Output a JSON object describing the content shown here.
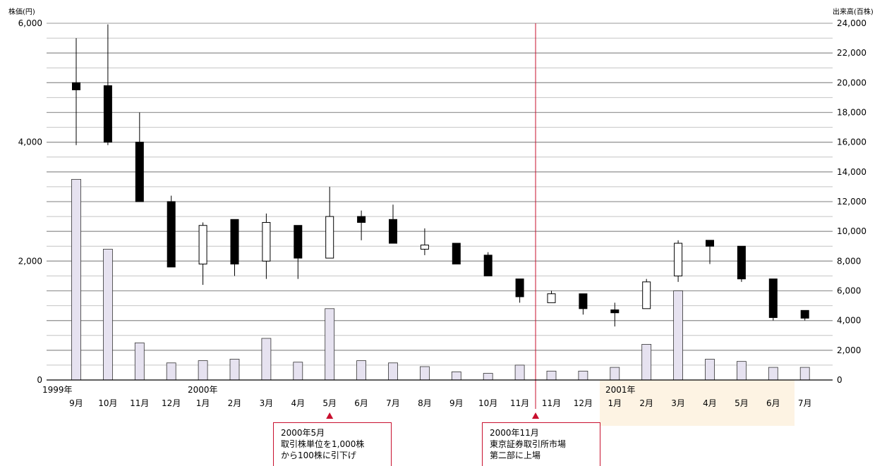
{
  "chart_data": {
    "type": "candlestick+bar",
    "ylabel_left": "株価(円)",
    "ylabel_right": "出来高(百株)",
    "left_ylim": [
      0,
      6000
    ],
    "left_ticks": [
      "0",
      "2,000",
      "4,000",
      "6,000"
    ],
    "left_tick_values": [
      0,
      2000,
      4000,
      6000
    ],
    "right_ylim": [
      0,
      24000
    ],
    "right_ticks": [
      "0",
      "2,000",
      "4,000",
      "6,000",
      "8,000",
      "10,000",
      "12,000",
      "14,000",
      "16,000",
      "18,000",
      "20,000",
      "22,000",
      "24,000"
    ],
    "right_tick_values": [
      0,
      2000,
      4000,
      6000,
      8000,
      10000,
      12000,
      14000,
      16000,
      18000,
      20000,
      22000,
      24000
    ],
    "year_labels": [
      {
        "index": 0,
        "text": "1999年"
      },
      {
        "index": 4,
        "text": "2000年"
      },
      {
        "index": 17,
        "text": "2001年"
      }
    ],
    "months": [
      "9月",
      "10月",
      "11月",
      "12月",
      "1月",
      "2月",
      "3月",
      "4月",
      "5月",
      "6月",
      "7月",
      "8月",
      "9月",
      "10月",
      "11月",
      "11月",
      "12月",
      "1月",
      "2月",
      "3月",
      "4月",
      "5月",
      "6月",
      "7月"
    ],
    "candles": [
      {
        "open": 5000,
        "high": 5750,
        "low": 3950,
        "close": 4880
      },
      {
        "open": 4950,
        "high": 5980,
        "low": 3950,
        "close": 4000
      },
      {
        "open": 4000,
        "high": 4500,
        "low": 3000,
        "close": 3000
      },
      {
        "open": 3000,
        "high": 3100,
        "low": 1900,
        "close": 1900
      },
      {
        "open": 1950,
        "high": 2650,
        "low": 1600,
        "close": 2600
      },
      {
        "open": 2700,
        "high": 2700,
        "low": 1750,
        "close": 1950
      },
      {
        "open": 2000,
        "high": 2800,
        "low": 1700,
        "close": 2650
      },
      {
        "open": 2600,
        "high": 2600,
        "low": 1700,
        "close": 2050
      },
      {
        "open": 2050,
        "high": 3250,
        "low": 2050,
        "close": 2750
      },
      {
        "open": 2750,
        "high": 2850,
        "low": 2350,
        "close": 2650
      },
      {
        "open": 2700,
        "high": 2950,
        "low": 2300,
        "close": 2300
      },
      {
        "open": 2200,
        "high": 2550,
        "low": 2100,
        "close": 2270
      },
      {
        "open": 2300,
        "high": 2300,
        "low": 1950,
        "close": 1950
      },
      {
        "open": 2100,
        "high": 2150,
        "low": 1750,
        "close": 1750
      },
      {
        "open": 1700,
        "high": 1700,
        "low": 1300,
        "close": 1400
      },
      {
        "open": 1300,
        "high": 1500,
        "low": 1300,
        "close": 1450
      },
      {
        "open": 1450,
        "high": 1450,
        "low": 1100,
        "close": 1200
      },
      {
        "open": 1180,
        "high": 1300,
        "low": 900,
        "close": 1130
      },
      {
        "open": 1200,
        "high": 1700,
        "low": 1200,
        "close": 1650
      },
      {
        "open": 1750,
        "high": 2350,
        "low": 1650,
        "close": 2300
      },
      {
        "open": 2350,
        "high": 2350,
        "low": 1950,
        "close": 2250
      },
      {
        "open": 2250,
        "high": 2250,
        "low": 1650,
        "close": 1700
      },
      {
        "open": 1700,
        "high": 1700,
        "low": 1000,
        "close": 1050
      },
      {
        "open": 1170,
        "high": 1170,
        "low": 1000,
        "close": 1040
      }
    ],
    "volume": [
      13500,
      8800,
      2500,
      1150,
      1300,
      1400,
      2800,
      1200,
      4800,
      1300,
      1150,
      900,
      550,
      450,
      1000,
      600,
      600,
      850,
      2400,
      6000,
      1400,
      1250,
      850,
      850
    ],
    "event_index": 14.5,
    "grid": true
  },
  "annotations": [
    {
      "lines": [
        "2000年5月",
        "取引株単位を1,000株",
        "から100株に引下げ"
      ]
    },
    {
      "lines": [
        "2000年11月",
        "東京証券取引所市場",
        "第二部に上場"
      ]
    }
  ],
  "colors": {
    "grid": "#aaaaaa",
    "volume_fill": "#e6e2f0",
    "highlight": "#fdf3e3",
    "accent": "#c8102e",
    "bear": "#000000",
    "bull": "#ffffff"
  }
}
